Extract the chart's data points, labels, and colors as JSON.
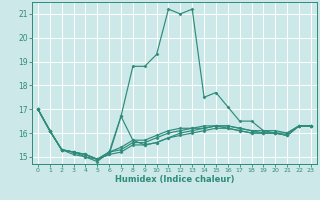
{
  "title": "",
  "xlabel": "Humidex (Indice chaleur)",
  "xlim": [
    -0.5,
    23.5
  ],
  "ylim": [
    14.7,
    21.5
  ],
  "yticks": [
    15,
    16,
    17,
    18,
    19,
    20,
    21
  ],
  "xticks": [
    0,
    1,
    2,
    3,
    4,
    5,
    6,
    7,
    8,
    9,
    10,
    11,
    12,
    13,
    14,
    15,
    16,
    17,
    18,
    19,
    20,
    21,
    22,
    23
  ],
  "background_color": "#cce8e8",
  "grid_color": "#ffffff",
  "line_color": "#2e8b7a",
  "lines": [
    {
      "x": [
        0,
        1,
        2,
        3,
        4,
        5,
        6,
        7,
        8,
        9,
        10,
        11,
        12,
        13,
        14,
        15,
        16,
        17,
        18,
        19,
        20,
        21,
        22,
        23
      ],
      "y": [
        17.0,
        16.1,
        15.3,
        15.2,
        15.0,
        14.8,
        15.2,
        16.7,
        15.7,
        15.5,
        15.6,
        15.8,
        16.0,
        16.1,
        16.2,
        16.3,
        16.2,
        16.1,
        16.0,
        16.0,
        16.0,
        15.9,
        16.3,
        16.3
      ]
    },
    {
      "x": [
        0,
        1,
        2,
        3,
        4,
        5,
        6,
        7,
        8,
        9,
        10,
        11,
        12,
        13,
        14,
        15,
        16,
        17,
        18,
        19,
        20,
        21,
        22,
        23
      ],
      "y": [
        17.0,
        16.1,
        15.3,
        15.2,
        15.1,
        14.9,
        15.1,
        16.7,
        18.8,
        18.8,
        19.3,
        21.2,
        21.0,
        21.2,
        17.5,
        17.7,
        17.1,
        16.5,
        16.5,
        16.1,
        16.0,
        15.9,
        16.3,
        16.3
      ]
    },
    {
      "x": [
        0,
        1,
        2,
        3,
        4,
        5,
        6,
        7,
        8,
        9,
        10,
        11,
        12,
        13,
        14,
        15,
        16,
        17,
        18,
        19,
        20,
        21,
        22,
        23
      ],
      "y": [
        17.0,
        16.1,
        15.3,
        15.1,
        15.0,
        14.9,
        15.1,
        15.2,
        15.5,
        15.5,
        15.6,
        15.8,
        15.9,
        16.0,
        16.1,
        16.2,
        16.2,
        16.1,
        16.0,
        16.0,
        16.0,
        15.9,
        16.3,
        16.3
      ]
    },
    {
      "x": [
        0,
        1,
        2,
        3,
        4,
        5,
        6,
        7,
        8,
        9,
        10,
        11,
        12,
        13,
        14,
        15,
        16,
        17,
        18,
        19,
        20,
        21,
        22,
        23
      ],
      "y": [
        17.0,
        16.1,
        15.3,
        15.2,
        15.1,
        14.9,
        15.2,
        15.3,
        15.6,
        15.6,
        15.8,
        16.0,
        16.1,
        16.2,
        16.2,
        16.3,
        16.3,
        16.2,
        16.1,
        16.0,
        16.0,
        16.0,
        16.3,
        16.3
      ]
    },
    {
      "x": [
        0,
        1,
        2,
        3,
        4,
        5,
        6,
        7,
        8,
        9,
        10,
        11,
        12,
        13,
        14,
        15,
        16,
        17,
        18,
        19,
        20,
        21,
        22,
        23
      ],
      "y": [
        17.0,
        16.1,
        15.3,
        15.2,
        15.1,
        14.9,
        15.2,
        15.4,
        15.7,
        15.7,
        15.9,
        16.1,
        16.2,
        16.2,
        16.3,
        16.3,
        16.3,
        16.2,
        16.1,
        16.1,
        16.1,
        16.0,
        16.3,
        16.3
      ]
    }
  ]
}
